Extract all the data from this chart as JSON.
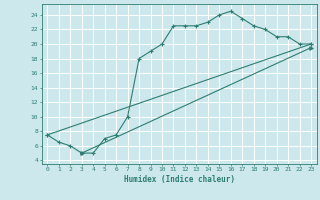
{
  "xlabel": "Humidex (Indice chaleur)",
  "ylabel": "",
  "bg_color": "#cce8ec",
  "line_color": "#2e7d72",
  "grid_color": "#ffffff",
  "x_ticks": [
    0,
    1,
    2,
    3,
    4,
    5,
    6,
    7,
    8,
    9,
    10,
    11,
    12,
    13,
    14,
    15,
    16,
    17,
    18,
    19,
    20,
    21,
    22,
    23
  ],
  "y_ticks": [
    4,
    6,
    8,
    10,
    12,
    14,
    16,
    18,
    20,
    22,
    24
  ],
  "xlim": [
    -0.5,
    23.5
  ],
  "ylim": [
    3.5,
    25.5
  ],
  "line1_x": [
    0,
    1,
    2,
    3,
    4,
    5,
    6,
    7,
    8,
    9,
    10,
    11,
    12,
    13,
    14,
    15,
    16,
    17,
    18,
    19,
    20,
    21,
    22,
    23
  ],
  "line1_y": [
    7.5,
    6.5,
    6.0,
    5.0,
    5.0,
    7.0,
    7.5,
    10.0,
    18.0,
    19.0,
    20.0,
    22.5,
    22.5,
    22.5,
    23.0,
    24.0,
    24.5,
    23.5,
    22.5,
    22.0,
    21.0,
    21.0,
    20.0,
    20.0
  ],
  "line2_x": [
    0,
    23
  ],
  "line2_y": [
    7.5,
    20.0
  ],
  "line3_x": [
    3,
    23
  ],
  "line3_y": [
    5.0,
    19.5
  ]
}
